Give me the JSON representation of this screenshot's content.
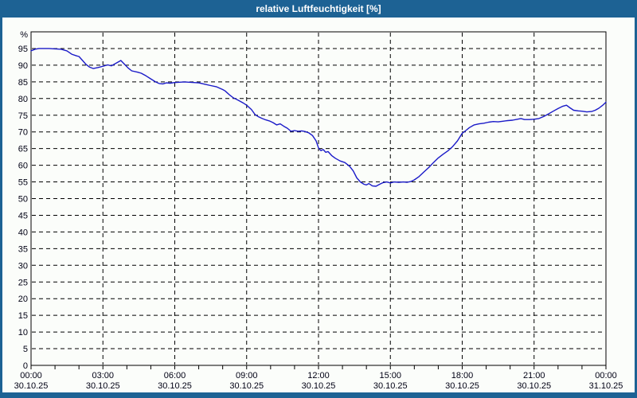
{
  "window": {
    "title": "relative Luftfeuchtigkeit [%]",
    "colors": {
      "titlebar": "#1d6294",
      "background": "#fbfdfa",
      "line": "#1a1ac8",
      "grid": "#000000",
      "text": "#000014"
    }
  },
  "chart_data": {
    "type": "line",
    "title": "relative Luftfeuchtigkeit [%]",
    "xlabel": "",
    "ylabel": "%",
    "ylim": [
      0,
      100
    ],
    "xlim_hours": [
      0,
      24
    ],
    "grid": "dashed, horizontal every 5 %, vertical every 3 h",
    "legend": "none",
    "minor_x_tick_every_hours": 1,
    "yticks": [
      0,
      5,
      10,
      15,
      20,
      25,
      30,
      35,
      40,
      45,
      50,
      55,
      60,
      65,
      70,
      75,
      80,
      85,
      90,
      95
    ],
    "xticks": [
      {
        "hour": 0,
        "time": "00:00",
        "date": "30.10.25"
      },
      {
        "hour": 3,
        "time": "03:00",
        "date": "30.10.25"
      },
      {
        "hour": 6,
        "time": "06:00",
        "date": "30.10.25"
      },
      {
        "hour": 9,
        "time": "09:00",
        "date": "30.10.25"
      },
      {
        "hour": 12,
        "time": "12:00",
        "date": "30.10.25"
      },
      {
        "hour": 15,
        "time": "15:00",
        "date": "30.10.25"
      },
      {
        "hour": 18,
        "time": "18:00",
        "date": "30.10.25"
      },
      {
        "hour": 21,
        "time": "21:00",
        "date": "30.10.25"
      },
      {
        "hour": 24,
        "time": "00:00",
        "date": "31.10.25"
      }
    ],
    "series": [
      {
        "name": "relative Luftfeuchtigkeit",
        "unit": "%",
        "color": "#1a1ac8",
        "points": [
          [
            0.0,
            94.3
          ],
          [
            0.17,
            94.8
          ],
          [
            0.33,
            95.0
          ],
          [
            0.75,
            95.0
          ],
          [
            1.0,
            94.9
          ],
          [
            1.25,
            94.8
          ],
          [
            1.5,
            94.3
          ],
          [
            1.7,
            93.3
          ],
          [
            1.9,
            92.8
          ],
          [
            2.0,
            92.6
          ],
          [
            2.15,
            91.4
          ],
          [
            2.3,
            90.2
          ],
          [
            2.45,
            89.4
          ],
          [
            2.6,
            89.0
          ],
          [
            2.8,
            89.3
          ],
          [
            3.0,
            89.7
          ],
          [
            3.2,
            90.1
          ],
          [
            3.35,
            89.8
          ],
          [
            3.55,
            90.6
          ],
          [
            3.75,
            91.4
          ],
          [
            3.9,
            90.3
          ],
          [
            4.05,
            89.2
          ],
          [
            4.2,
            88.3
          ],
          [
            4.45,
            87.9
          ],
          [
            4.6,
            87.6
          ],
          [
            4.8,
            86.8
          ],
          [
            5.0,
            85.9
          ],
          [
            5.2,
            85.0
          ],
          [
            5.35,
            84.5
          ],
          [
            5.5,
            84.4
          ],
          [
            5.65,
            84.7
          ],
          [
            5.8,
            84.6
          ],
          [
            6.0,
            84.8
          ],
          [
            6.2,
            84.9
          ],
          [
            6.4,
            85.0
          ],
          [
            6.6,
            84.9
          ],
          [
            6.8,
            84.8
          ],
          [
            7.0,
            84.7
          ],
          [
            7.2,
            84.4
          ],
          [
            7.5,
            83.9
          ],
          [
            7.75,
            83.5
          ],
          [
            8.0,
            82.7
          ],
          [
            8.1,
            82.3
          ],
          [
            8.3,
            81.0
          ],
          [
            8.45,
            80.2
          ],
          [
            8.6,
            79.7
          ],
          [
            8.85,
            78.7
          ],
          [
            9.0,
            78.0
          ],
          [
            9.2,
            76.7
          ],
          [
            9.35,
            75.2
          ],
          [
            9.5,
            74.5
          ],
          [
            9.65,
            74.0
          ],
          [
            9.8,
            73.6
          ],
          [
            9.95,
            73.3
          ],
          [
            10.1,
            72.8
          ],
          [
            10.25,
            72.1
          ],
          [
            10.4,
            72.4
          ],
          [
            10.55,
            71.7
          ],
          [
            10.7,
            71.1
          ],
          [
            10.85,
            70.2
          ],
          [
            11.0,
            70.4
          ],
          [
            11.15,
            70.2
          ],
          [
            11.3,
            70.3
          ],
          [
            11.45,
            70.1
          ],
          [
            11.6,
            69.7
          ],
          [
            11.75,
            68.9
          ],
          [
            11.9,
            67.3
          ],
          [
            12.0,
            65.2
          ],
          [
            12.1,
            64.4
          ],
          [
            12.2,
            64.7
          ],
          [
            12.3,
            63.9
          ],
          [
            12.4,
            64.1
          ],
          [
            12.55,
            62.9
          ],
          [
            12.7,
            62.1
          ],
          [
            12.9,
            61.3
          ],
          [
            13.1,
            60.8
          ],
          [
            13.3,
            59.7
          ],
          [
            13.45,
            58.3
          ],
          [
            13.6,
            56.2
          ],
          [
            13.75,
            55.0
          ],
          [
            13.9,
            54.3
          ],
          [
            14.0,
            54.1
          ],
          [
            14.1,
            54.5
          ],
          [
            14.25,
            53.8
          ],
          [
            14.4,
            53.7
          ],
          [
            14.55,
            54.3
          ],
          [
            14.7,
            54.8
          ],
          [
            14.85,
            55.0
          ],
          [
            15.0,
            54.7
          ],
          [
            15.15,
            55.0
          ],
          [
            15.35,
            54.9
          ],
          [
            15.55,
            55.0
          ],
          [
            15.7,
            54.9
          ],
          [
            15.85,
            55.1
          ],
          [
            16.0,
            55.6
          ],
          [
            16.2,
            56.6
          ],
          [
            16.4,
            58.0
          ],
          [
            16.6,
            59.3
          ],
          [
            16.8,
            60.8
          ],
          [
            17.0,
            62.2
          ],
          [
            17.2,
            63.3
          ],
          [
            17.4,
            64.3
          ],
          [
            17.6,
            65.6
          ],
          [
            17.8,
            67.3
          ],
          [
            18.0,
            69.6
          ],
          [
            18.15,
            70.4
          ],
          [
            18.3,
            71.3
          ],
          [
            18.5,
            72.1
          ],
          [
            18.7,
            72.4
          ],
          [
            18.9,
            72.6
          ],
          [
            19.1,
            72.9
          ],
          [
            19.3,
            73.1
          ],
          [
            19.5,
            73.0
          ],
          [
            19.7,
            73.2
          ],
          [
            19.9,
            73.4
          ],
          [
            20.1,
            73.5
          ],
          [
            20.3,
            73.8
          ],
          [
            20.45,
            74.0
          ],
          [
            20.6,
            73.7
          ],
          [
            20.8,
            73.7
          ],
          [
            21.0,
            73.8
          ],
          [
            21.2,
            74.0
          ],
          [
            21.4,
            74.6
          ],
          [
            21.6,
            75.4
          ],
          [
            21.8,
            76.2
          ],
          [
            22.0,
            77.0
          ],
          [
            22.2,
            77.7
          ],
          [
            22.35,
            78.0
          ],
          [
            22.5,
            77.2
          ],
          [
            22.65,
            76.5
          ],
          [
            22.85,
            76.3
          ],
          [
            23.0,
            76.2
          ],
          [
            23.2,
            76.0
          ],
          [
            23.4,
            76.1
          ],
          [
            23.55,
            76.5
          ],
          [
            23.7,
            77.1
          ],
          [
            23.85,
            77.9
          ],
          [
            24.0,
            78.9
          ]
        ]
      }
    ]
  }
}
